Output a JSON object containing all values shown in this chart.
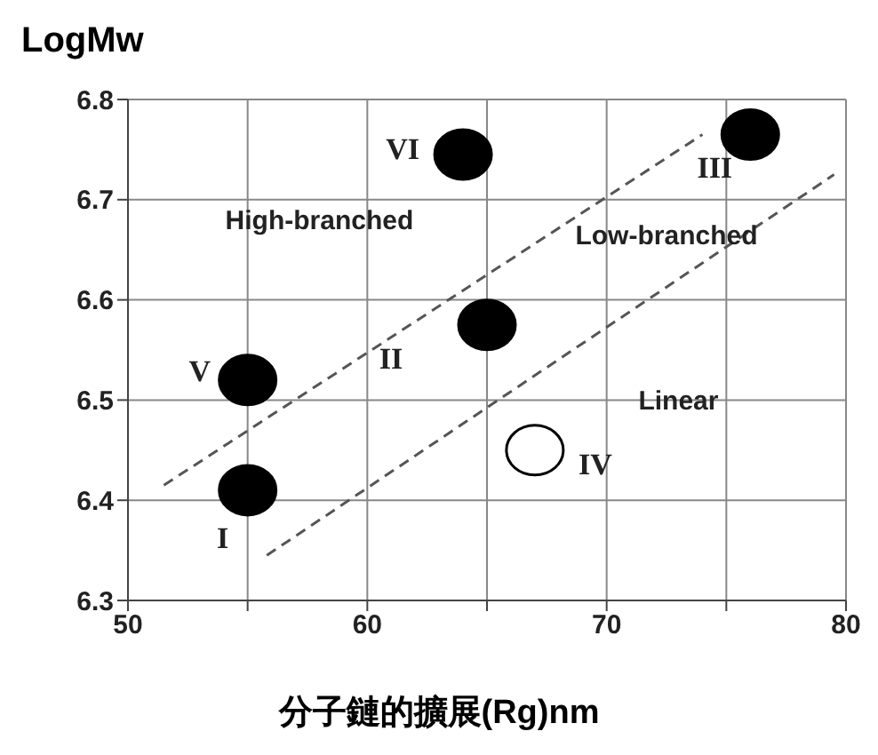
{
  "chart_data": {
    "type": "scatter",
    "ylabel": "LogMw",
    "xlabel": "分子鏈的擴展(Rg)nm",
    "xlim": [
      50,
      80
    ],
    "xticks": [
      50,
      {
        "value": 55,
        "label": null
      },
      60,
      {
        "value": 65,
        "label": null
      },
      70,
      {
        "value": 75,
        "label": null
      },
      80
    ],
    "ylim": [
      6.3,
      6.8
    ],
    "yticks": [
      6.3,
      6.4,
      6.5,
      6.6,
      6.7,
      6.8
    ],
    "grid": true,
    "series": [
      {
        "marker": "circle",
        "x": [
          55,
          65,
          76,
          67,
          55,
          64
        ],
        "values": [
          6.41,
          6.575,
          6.765,
          6.45,
          6.52,
          6.745
        ],
        "value_labels": [
          "I",
          "II",
          "III",
          "IV",
          "V",
          "VI"
        ],
        "colors": [
          "#000000",
          "#000000",
          "#000000",
          "#ffffff",
          "#000000",
          "#000000"
        ]
      },
      {
        "type": "line",
        "line_style": "dashed",
        "color": "#555555",
        "x": [
          51.5,
          74
        ],
        "values": [
          6.415,
          6.765
        ]
      },
      {
        "type": "line",
        "line_style": "dashed",
        "color": "#555555",
        "x": [
          55.8,
          79.5
        ],
        "values": [
          6.345,
          6.725
        ]
      }
    ],
    "annotations": [
      "High-branched",
      "Low-branched",
      "Linear"
    ]
  }
}
